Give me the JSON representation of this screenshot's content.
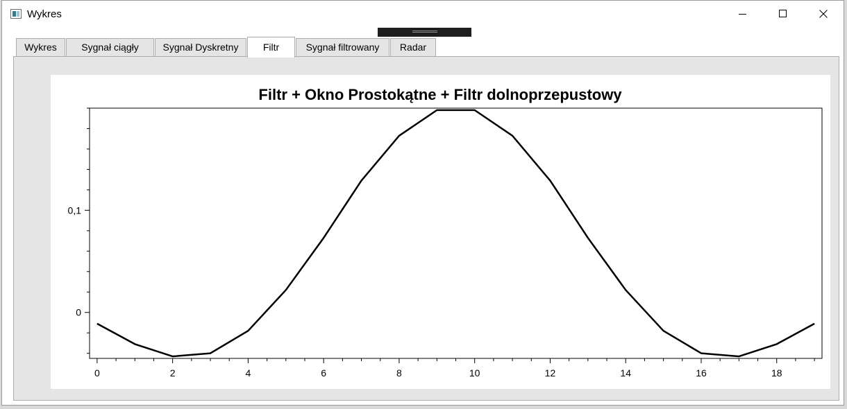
{
  "window": {
    "title": "Wykres"
  },
  "tabs": [
    {
      "label": "Wykres"
    },
    {
      "label": "Sygnał ciągły"
    },
    {
      "label": "Sygnał Dyskretny"
    },
    {
      "label": "Filtr"
    },
    {
      "label": "Sygnał filtrowany"
    },
    {
      "label": "Radar"
    }
  ],
  "active_tab": "Filtr",
  "chart_data": {
    "type": "line",
    "title": "Filtr + Okno Prostokątne + Filtr dolnoprzepustowy",
    "xlabel": "",
    "ylabel": "",
    "x": [
      0,
      1,
      2,
      3,
      4,
      5,
      6,
      7,
      8,
      9,
      10,
      11,
      12,
      13,
      14,
      15,
      16,
      17,
      18,
      19
    ],
    "series": [
      {
        "values": [
          -0.011,
          -0.031,
          -0.043,
          -0.04,
          -0.018,
          0.022,
          0.073,
          0.129,
          0.173,
          0.198,
          0.198,
          0.173,
          0.129,
          0.073,
          0.022,
          -0.018,
          -0.04,
          -0.043,
          -0.031,
          -0.011
        ],
        "color": "#000000"
      }
    ],
    "xlim": [
      -0.2,
      19.2
    ],
    "ylim": [
      -0.045,
      0.2
    ],
    "x_ticks": [
      0,
      2,
      4,
      6,
      8,
      10,
      12,
      14,
      16,
      18
    ],
    "x_tick_labels": [
      "0",
      "2",
      "4",
      "6",
      "8",
      "10",
      "12",
      "14",
      "16",
      "18"
    ],
    "y_ticks": [
      0,
      0.1
    ],
    "y_tick_labels": [
      "0",
      "0,1"
    ],
    "grid": false,
    "legend": false
  }
}
